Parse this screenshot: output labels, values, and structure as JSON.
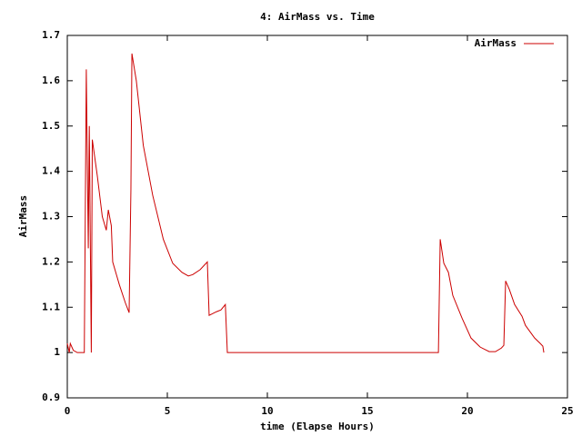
{
  "chart_data": {
    "type": "line",
    "title": "4: AirMass vs. Time",
    "x_label": "time (Elapse Hours)",
    "y_label": "AirMass",
    "xlim": [
      0,
      25
    ],
    "xticks": [
      0,
      5,
      10,
      15,
      20,
      25
    ],
    "ylim": [
      0.9,
      1.7
    ],
    "yticks": [
      0.9,
      1,
      1.1,
      1.2,
      1.3,
      1.4,
      1.5,
      1.6,
      1.7
    ],
    "grid": false,
    "legend": "top-right",
    "series": [
      {
        "name": "AirMass",
        "color": "#cc0000",
        "x": [
          0,
          0.1,
          0.15,
          0.3,
          0.5,
          0.85,
          0.95,
          1.05,
          1.1,
          1.2,
          1.25,
          1.5,
          1.75,
          1.95,
          2.05,
          2.2,
          2.27,
          2.6,
          2.9,
          3.09,
          3.18,
          3.23,
          3.45,
          3.8,
          4.27,
          4.8,
          5.27,
          5.73,
          6.05,
          6.27,
          6.64,
          7.0,
          7.09,
          7.45,
          7.68,
          7.9,
          8.0,
          18.55,
          18.64,
          18.82,
          19.05,
          19.27,
          19.73,
          20.18,
          20.64,
          21.09,
          21.4,
          21.7,
          21.82,
          21.91,
          22.09,
          22.36,
          22.73,
          22.9,
          23.36,
          23.64,
          23.77,
          23.82
        ],
        "values": [
          1.02,
          1.0,
          1.02,
          1.005,
          1.0,
          1.0,
          1.625,
          1.23,
          1.5,
          1.0,
          1.47,
          1.39,
          1.3,
          1.27,
          1.315,
          1.28,
          1.2,
          1.15,
          1.11,
          1.088,
          1.36,
          1.66,
          1.6,
          1.457,
          1.347,
          1.25,
          1.197,
          1.177,
          1.169,
          1.172,
          1.183,
          1.2,
          1.082,
          1.09,
          1.094,
          1.106,
          1.0,
          1.0,
          1.25,
          1.197,
          1.177,
          1.126,
          1.076,
          1.032,
          1.012,
          1.002,
          1.002,
          1.01,
          1.016,
          1.158,
          1.14,
          1.106,
          1.08,
          1.06,
          1.032,
          1.02,
          1.014,
          1.0
        ]
      }
    ]
  }
}
